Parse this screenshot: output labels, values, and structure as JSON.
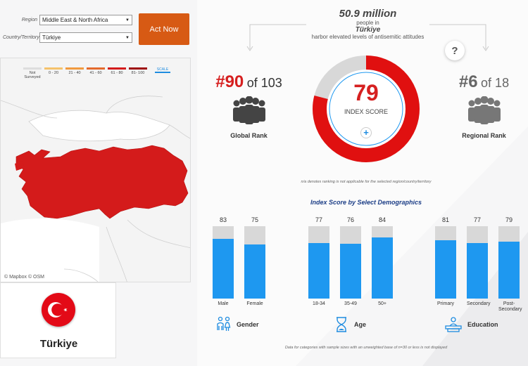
{
  "filters": {
    "region_label": "Region",
    "region_value": "Middle East & North Africa",
    "country_label": "Country/Territory",
    "country_value": "Türkiye"
  },
  "act_now": "Act Now",
  "legend": [
    {
      "label": "Not Surveyed",
      "color": "#dddddd"
    },
    {
      "label": "0 - 20",
      "color": "#f5c26b"
    },
    {
      "label": "21 - 40",
      "color": "#f19a3e"
    },
    {
      "label": "41 - 60",
      "color": "#e46a2c"
    },
    {
      "label": "61 - 80",
      "color": "#d31b1b"
    },
    {
      "label": "81- 100",
      "color": "#9e0d0d"
    }
  ],
  "scale_label": "SCALE",
  "map_credit": "© Mapbox  © OSM",
  "country_name": "Türkiye",
  "headline": {
    "number": "50.9 million",
    "people_in": "people in",
    "country": "Türkiye",
    "description": "harbor elevated levels of antisemitic attitudes"
  },
  "help_icon": "?",
  "global_rank": {
    "rank": "#90",
    "of": "of 103",
    "label": "Global Rank"
  },
  "regional_rank": {
    "rank": "#6",
    "of": "of 18",
    "label": "Regional Rank"
  },
  "index_score": {
    "value": 79,
    "value_text": "79",
    "label": "INDEX SCORE",
    "plus": "+"
  },
  "na_note": "n/a denotes ranking is not applicable for the selected region/country/territory",
  "demographics_title": "Index Score by Select Demographics",
  "demographics": {
    "gender": {
      "label": "Gender",
      "items": [
        {
          "cat": "Male",
          "value": 83,
          "value_text": "83"
        },
        {
          "cat": "Female",
          "value": 75,
          "value_text": "75"
        }
      ]
    },
    "age": {
      "label": "Age",
      "items": [
        {
          "cat": "18-34",
          "value": 77,
          "value_text": "77"
        },
        {
          "cat": "35-49",
          "value": 76,
          "value_text": "76"
        },
        {
          "cat": "50+",
          "value": 84,
          "value_text": "84"
        }
      ]
    },
    "education": {
      "label": "Education",
      "items": [
        {
          "cat": "Primary",
          "value": 81,
          "value_text": "81"
        },
        {
          "cat": "Secondary",
          "value": 77,
          "value_text": "77"
        },
        {
          "cat": "Post-Secondary",
          "value": 79,
          "value_text": "79"
        }
      ]
    }
  },
  "footnote": "Data for categories with sample sizes with an unweighted base of n=30 or less is not displayed",
  "colors": {
    "accent_red": "#d62020",
    "bar_blue": "#1e98f0",
    "button_orange": "#d75a14",
    "navy": "#1b3d86"
  },
  "icons": [
    "chevron-down-icon",
    "people-group-icon",
    "question-icon",
    "plus-icon",
    "gender-icon",
    "hourglass-icon",
    "education-icon",
    "crescent-star-flag-icon"
  ]
}
